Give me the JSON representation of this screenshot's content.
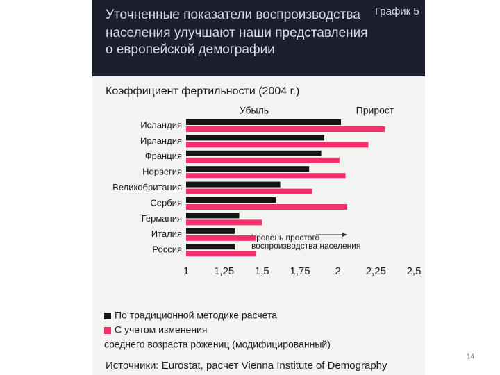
{
  "chart_data": {
    "type": "hbar",
    "header_lines": [
      "Уточненные показатели воспроизводства",
      "населения улучшают наши представления",
      "о европейской демографии"
    ],
    "chart_label": "График 5",
    "title": "Коэффициент фертильности (2004 г.)",
    "annotations": {
      "left": "Убыль",
      "right": "Прирост",
      "reference_lines": [
        "Уровень простого",
        "воспроизводства населения"
      ]
    },
    "categories": [
      "Исландия",
      "Ирландия",
      "Франция",
      "Норвегия",
      "Великобритания",
      "Сербия",
      "Германия",
      "Италия",
      "Россия"
    ],
    "series": [
      {
        "name": "По традиционной методике расчета",
        "color": "#141414",
        "values": [
          2.02,
          1.91,
          1.89,
          1.81,
          1.62,
          1.59,
          1.35,
          1.32,
          1.32
        ]
      },
      {
        "name": "С учетом изменения",
        "color": "#f2306b",
        "values": [
          2.31,
          2.2,
          2.01,
          2.05,
          1.83,
          2.06,
          1.5,
          1.46,
          1.46
        ]
      }
    ],
    "legend_note": "среднего возраста рожениц (модифицированный)",
    "xlim": [
      1,
      2.5
    ],
    "xticks": [
      1,
      {
        "value": 1.25,
        "label": "1,25"
      },
      {
        "value": 1.5,
        "label": "1,5"
      },
      {
        "value": 1.75,
        "label": "1,75"
      },
      2,
      {
        "value": 2.25,
        "label": "2,25"
      },
      {
        "value": 2.5,
        "label": "2,5"
      }
    ],
    "source": "Источники: Eurostat, расчет Vienna Institute of Demography"
  },
  "slide": {
    "page_number": "14"
  }
}
